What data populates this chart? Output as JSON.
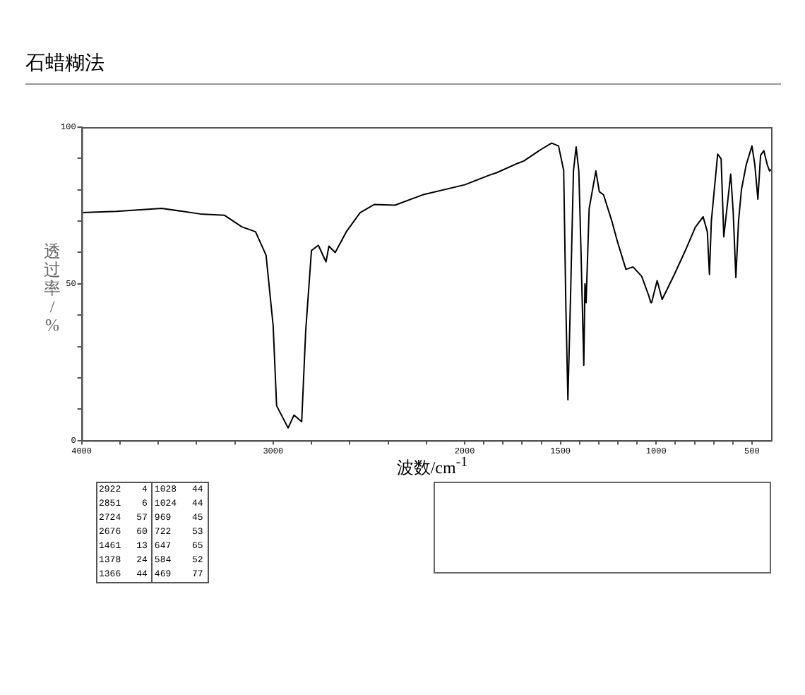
{
  "chart_data": {
    "type": "line",
    "title": "石蜡糊法",
    "xlabel": "波数/cm$^{-1}$",
    "ylabel": "透过率/%",
    "xlim": [
      4000,
      400
    ],
    "ylim": [
      0,
      100
    ],
    "xticks": [
      4000,
      {
        "value": 3800,
        "label": null
      },
      {
        "value": 3600,
        "label": null
      },
      {
        "value": 3400,
        "label": null
      },
      {
        "value": 3200,
        "label": null
      },
      3000,
      {
        "value": 2800,
        "label": null
      },
      {
        "value": 2600,
        "label": null
      },
      {
        "value": 2400,
        "label": null
      },
      {
        "value": 2200,
        "label": null
      },
      2000,
      {
        "value": 1900,
        "label": null
      },
      {
        "value": 1800,
        "label": null
      },
      {
        "value": 1700,
        "label": null
      },
      {
        "value": 1600,
        "label": null
      },
      1500,
      {
        "value": 1400,
        "label": null
      },
      {
        "value": 1300,
        "label": null
      },
      {
        "value": 1200,
        "label": null
      },
      {
        "value": 1100,
        "label": null
      },
      1000,
      {
        "value": 900,
        "label": null
      },
      {
        "value": 800,
        "label": null
      },
      {
        "value": 700,
        "label": null
      },
      {
        "value": 600,
        "label": null
      },
      500
    ],
    "yticks": [
      0,
      {
        "value": 10,
        "label": null
      },
      {
        "value": 20,
        "label": null
      },
      {
        "value": 30,
        "label": null
      },
      {
        "value": 40,
        "label": null
      },
      50,
      {
        "value": 60,
        "label": null
      },
      {
        "value": 70,
        "label": null
      },
      {
        "value": 80,
        "label": null
      },
      {
        "value": 90,
        "label": null
      },
      100
    ],
    "grid": false,
    "legend": false,
    "marker": "none",
    "line_style": "solid",
    "series": [
      {
        "color": "#000000",
        "x": [
          4000,
          3818,
          3582,
          3382,
          3255,
          3164,
          3092,
          3037,
          3000,
          2982,
          2922,
          2891,
          2851,
          2830,
          2800,
          2764,
          2724,
          2709,
          2676,
          2618,
          2546,
          2473,
          2364,
          2219,
          2000,
          1870,
          1835,
          1725,
          1691,
          1601,
          1546,
          1510,
          1483,
          1472,
          1461,
          1448,
          1432,
          1418,
          1404,
          1392,
          1378,
          1372,
          1366,
          1350,
          1315,
          1297,
          1275,
          1230,
          1203,
          1158,
          1121,
          1076,
          1040,
          1028,
          1024,
          995,
          969,
          905,
          842,
          796,
          755,
          733,
          722,
          712,
          679,
          661,
          647,
          611,
          598,
          584,
          570,
          555,
          530,
          500,
          485,
          469,
          455,
          438,
          420,
          408,
          400
        ],
        "values": [
          72.7,
          73.1,
          74.1,
          72.3,
          71.9,
          68.2,
          66.6,
          59.1,
          36.6,
          11.1,
          4,
          8.1,
          6,
          35,
          60.6,
          62.3,
          57,
          62,
          60,
          66.6,
          72.7,
          75.3,
          75.1,
          78.4,
          81.6,
          84.7,
          85.4,
          88.4,
          89.2,
          92.9,
          94.9,
          94,
          86.2,
          44,
          13,
          44,
          86,
          93.7,
          86,
          59,
          24,
          50,
          44,
          74,
          86,
          79.4,
          78.4,
          69.7,
          63.6,
          54.6,
          55.4,
          52.4,
          46.4,
          44,
          44,
          51,
          45,
          53,
          61.4,
          68,
          71.4,
          66.6,
          53,
          70,
          91.4,
          89.9,
          65,
          85,
          73,
          52,
          70,
          80,
          88,
          94,
          88,
          77,
          91,
          92.5,
          88,
          86,
          86.5
        ]
      }
    ],
    "annotations": [
      "2922 4",
      "2851 6",
      "2724 57",
      "2676 60",
      "1461 13",
      "1378 24",
      "1366 44",
      "1028 44",
      "1024 44",
      "969 45",
      "722 53",
      "647 65",
      "584 52",
      "469 77"
    ]
  }
}
